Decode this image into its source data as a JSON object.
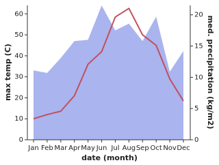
{
  "chart_data": {
    "type": "line-area",
    "x_label": "date (month)",
    "y_label": "max temp (C)",
    "y2_label": "med. precipitation (kg/m2)",
    "categories": [
      "Jan",
      "Feb",
      "Mar",
      "Apr",
      "May",
      "Jun",
      "Jul",
      "Aug",
      "Sep",
      "Oct",
      "Nov",
      "Dec"
    ],
    "series": [
      {
        "name": "med. precipitation",
        "kind": "area",
        "axis": "y2",
        "color": "#aab4ee",
        "values": [
          11.1,
          10.7,
          13.1,
          15.8,
          16.0,
          21.5,
          17.5,
          18.6,
          15.8,
          19.7,
          10.9,
          14.2
        ]
      },
      {
        "name": "max temp",
        "kind": "line",
        "color": "#c0505e",
        "values": [
          10,
          12,
          13.6,
          21,
          36,
          42,
          58.5,
          62.6,
          50,
          45,
          29,
          18.5
        ]
      }
    ],
    "ylim": [
      0,
      64
    ],
    "yticks": [
      0,
      10,
      20,
      30,
      40,
      50,
      60
    ],
    "y2lim": [
      0,
      21.5
    ],
    "y2ticks": [
      0,
      5,
      10,
      15,
      20
    ]
  }
}
